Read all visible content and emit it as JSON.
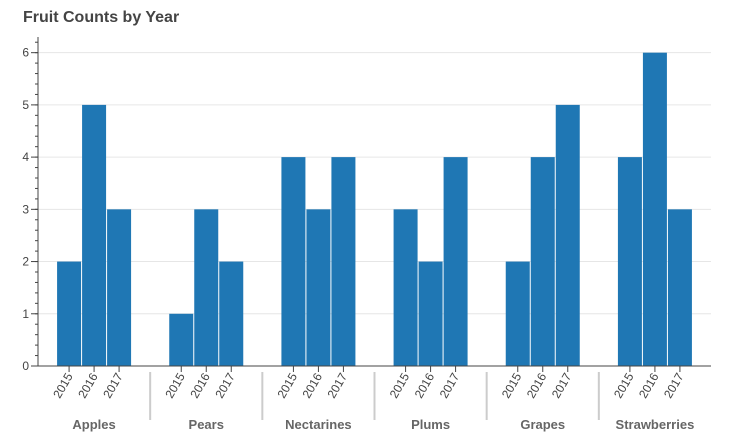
{
  "chart_data": {
    "type": "bar",
    "title": "Fruit Counts by Year",
    "xlabel": "",
    "ylabel": "",
    "ylim": [
      0,
      6.3
    ],
    "yticks": [
      0,
      1,
      2,
      3,
      4,
      5,
      6
    ],
    "grid": true,
    "legend": "none",
    "bar_color": "#1f77b4",
    "categories": [
      "Apples",
      "Pears",
      "Nectarines",
      "Plums",
      "Grapes",
      "Strawberries"
    ],
    "subcategories": [
      "2015",
      "2016",
      "2017"
    ],
    "series": [
      {
        "values": [
          2,
          1,
          4,
          3,
          2,
          4
        ]
      },
      {
        "values": [
          5,
          3,
          3,
          2,
          4,
          6
        ]
      },
      {
        "values": [
          3,
          2,
          4,
          4,
          5,
          3
        ]
      }
    ]
  }
}
